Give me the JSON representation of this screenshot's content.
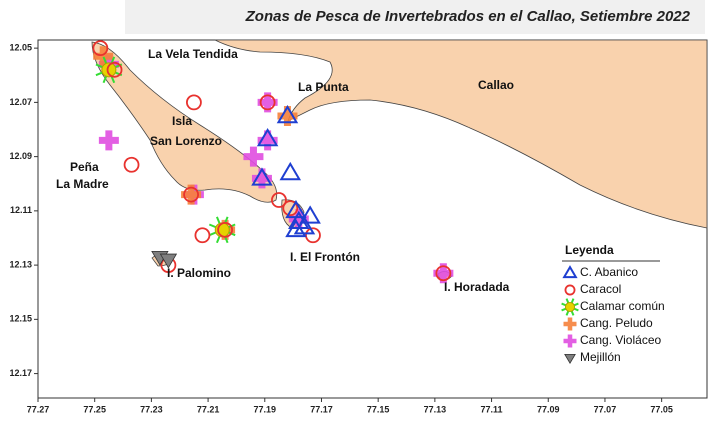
{
  "chart_data": {
    "type": "scatter",
    "title": "Zonas de Pesca de Invertebrados en el Callao, Setiembre 2022",
    "annotations": [
      "La Vela Tendida",
      "La Punta",
      "Callao",
      "Isla",
      "San Lorenzo",
      "Peña",
      "La Madre",
      "I. El Frontón",
      "I. Palomino",
      "I. Horadada"
    ],
    "legend_title": "Leyenda",
    "xlim": [
      77.27,
      77.034
    ],
    "ylim": [
      12.047,
      12.179
    ],
    "xticks": [
      77.27,
      77.25,
      77.23,
      77.21,
      77.19,
      77.17,
      77.15,
      77.13,
      77.11,
      77.09,
      77.07,
      77.05
    ],
    "yticks": [
      12.05,
      12.07,
      12.09,
      12.11,
      12.13,
      12.15,
      12.17
    ],
    "series": [
      {
        "name": "C. Abanico",
        "color": "#1f3fd1",
        "marker": "triangle",
        "x": [
          77.189,
          77.182,
          77.181,
          77.191,
          77.179,
          77.178,
          77.176,
          77.179,
          77.174
        ],
        "y": [
          12.0835,
          12.075,
          12.096,
          12.098,
          12.11,
          12.114,
          12.116,
          12.117,
          12.112
        ]
      },
      {
        "name": "Caracol",
        "color": "#e8322e",
        "marker": "circle",
        "x": [
          77.248,
          77.243,
          77.215,
          77.237,
          77.216,
          77.224,
          77.212,
          77.204,
          77.185,
          77.173,
          77.189,
          77.127,
          77.181
        ],
        "y": [
          12.05,
          12.058,
          12.07,
          12.093,
          12.104,
          12.13,
          12.119,
          12.117,
          12.106,
          12.119,
          12.07,
          12.133,
          12.109
        ]
      },
      {
        "name": "Calamar común",
        "color": "#e6d200",
        "marker": "star",
        "x": [
          77.245,
          77.205
        ],
        "y": [
          12.058,
          12.117
        ]
      },
      {
        "name": "Cang. Peludo",
        "color": "#f5813a",
        "marker": "cross",
        "x": [
          77.247,
          77.216,
          77.182,
          77.204
        ],
        "y": [
          12.053,
          12.104,
          12.075,
          12.117
        ]
      },
      {
        "name": "Cang. Violáceo",
        "color": "#e04ee0",
        "marker": "cross",
        "x": [
          77.245,
          77.245,
          77.194,
          77.189,
          77.189,
          77.191,
          77.215,
          77.127,
          77.178
        ],
        "y": [
          12.084,
          12.056,
          12.09,
          12.07,
          12.084,
          12.098,
          12.104,
          12.133,
          12.113
        ]
      },
      {
        "name": "Mejillón",
        "color": "#7f7f7f",
        "marker": "down",
        "x": [
          77.227,
          77.224
        ],
        "y": [
          12.127,
          12.128
        ]
      }
    ]
  }
}
